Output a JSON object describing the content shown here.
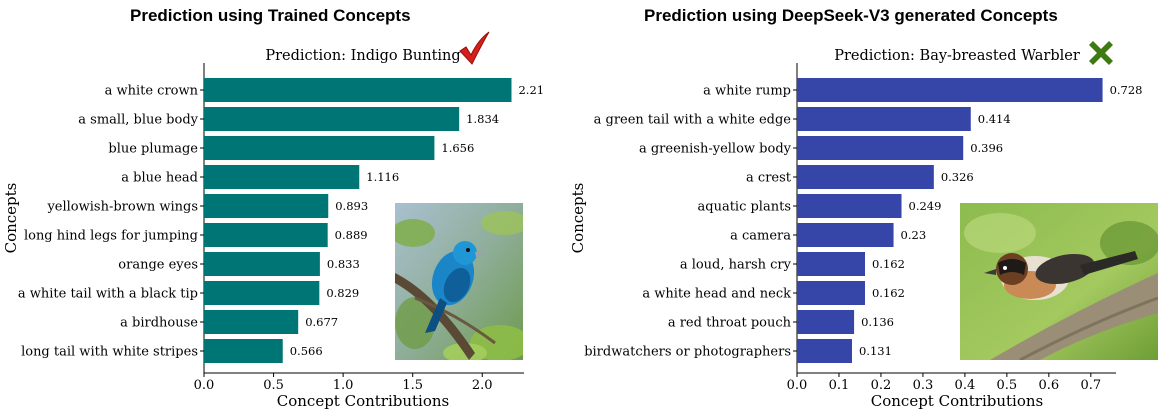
{
  "headings": {
    "left": "Prediction using Trained Concepts",
    "right": "Prediction using DeepSeek-V3 generated Concepts"
  },
  "chart_data": [
    {
      "type": "bar",
      "orientation": "horizontal",
      "title": "Prediction: Indigo Bunting",
      "xlabel": "Concept Contributions",
      "ylabel": "Concepts",
      "xlim": [
        0,
        2.3
      ],
      "xticks": [
        "0.0",
        "0.5",
        "1.0",
        "1.5",
        "2.0"
      ],
      "bar_color": "#007575",
      "verdict_icon": "red-checkmark-icon",
      "image": "indigo-bunting-photo",
      "categories": [
        "a white crown",
        "a small, blue body",
        "blue plumage",
        "a blue head",
        "yellowish-brown wings",
        "long hind legs for jumping",
        "orange eyes",
        "a white tail with a black tip",
        "a birdhouse",
        "long tail with white stripes"
      ],
      "values": [
        2.21,
        1.834,
        1.656,
        1.116,
        0.893,
        0.889,
        0.833,
        0.829,
        0.677,
        0.566
      ],
      "value_labels": [
        "2.21",
        "1.834",
        "1.656",
        "1.116",
        "0.893",
        "0.889",
        "0.833",
        "0.829",
        "0.677",
        "0.566"
      ]
    },
    {
      "type": "bar",
      "orientation": "horizontal",
      "title": "Prediction: Bay-breasted Warbler",
      "xlabel": "Concept Contributions",
      "ylabel": "Concepts",
      "xlim": [
        0,
        0.76
      ],
      "xticks": [
        "0.0",
        "0.1",
        "0.2",
        "0.3",
        "0.4",
        "0.5",
        "0.6",
        "0.7"
      ],
      "bar_color": "#3645a8",
      "verdict_icon": "green-cross-icon",
      "image": "bay-breasted-warbler-photo",
      "categories": [
        "a white rump",
        "a green tail with a white edge",
        "a greenish-yellow body",
        "a crest",
        "aquatic plants",
        "a camera",
        "a loud, harsh cry",
        "a white head and neck",
        "a red throat pouch",
        "birdwatchers or photographers"
      ],
      "values": [
        0.728,
        0.414,
        0.396,
        0.326,
        0.249,
        0.23,
        0.162,
        0.162,
        0.136,
        0.131
      ],
      "value_labels": [
        "0.728",
        "0.414",
        "0.396",
        "0.326",
        "0.249",
        "0.23",
        "0.162",
        "0.162",
        "0.136",
        "0.131"
      ]
    }
  ]
}
